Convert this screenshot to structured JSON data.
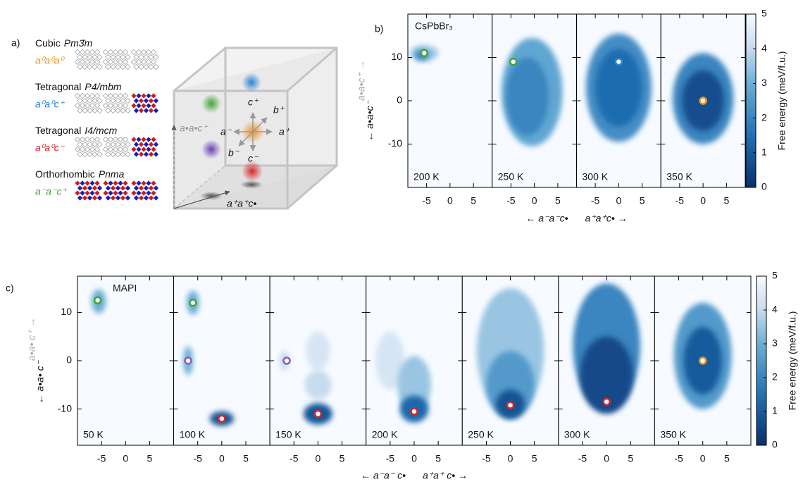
{
  "panel_a": {
    "label": "a)",
    "phases": [
      {
        "system": "Cubic",
        "group": "Pm3̄m",
        "tilt": "a⁰a⁰a⁰",
        "color": "#f39019"
      },
      {
        "system": "Tetragonal",
        "group": "P4/mbm",
        "tilt": "a⁰a⁰c⁺",
        "color": "#2a83d8"
      },
      {
        "system": "Tetragonal",
        "group": "I4/mcm",
        "tilt": "a⁰a⁰c⁻",
        "color": "#d7262b"
      },
      {
        "system": "Orthorhombic",
        "group": "Pnma",
        "tilt": "a⁻a⁻c⁺",
        "color": "#45a33a"
      }
    ],
    "cube_labels": {
      "c_plus": "c⁺",
      "b_plus": "b⁺",
      "a_plus": "a⁺",
      "a_minus": "a⁻",
      "b_minus": "b⁻",
      "c_minus": "c⁻",
      "side": "a•a•c⁺",
      "bottom": "a⁺a⁺c•"
    }
  },
  "chart_data": [
    {
      "type": "heatmap",
      "label": "b)",
      "title": "CsPbBr₃",
      "xlim": [
        -9,
        9
      ],
      "xticks": [
        -5,
        0,
        5
      ],
      "ylim": [
        -20,
        20
      ],
      "yticks": [
        -10,
        0,
        10
      ],
      "x_label_neg": "← a⁻a⁻c•",
      "x_label_pos": "a⁺a⁺c• →",
      "y_label_neg": "← a•a•c⁻",
      "y_label_pos": "a•a•c⁺ →",
      "colorbar": {
        "label": "Free energy (meV/f.u.)",
        "lim": [
          0,
          5
        ],
        "ticks": [
          0,
          1,
          2,
          3,
          4,
          5
        ]
      },
      "panels": [
        {
          "temperature": "200 K",
          "regions": [
            {
              "x": -5.5,
              "y": 11,
              "rx": 3,
              "ry": 1.8,
              "level": 3.5
            },
            {
              "x": -6,
              "y": 10.5,
              "rx": 1.5,
              "ry": 1.2,
              "level": 2
            }
          ],
          "minima": [
            {
              "x": -5.5,
              "y": 11,
              "color": "#45a33a"
            }
          ]
        },
        {
          "temperature": "250 K",
          "regions": [
            {
              "x": -0.5,
              "y": 2,
              "rx": 6.5,
              "ry": 12.5,
              "level": 2.8
            },
            {
              "x": -1.5,
              "y": 1,
              "rx": 4.5,
              "ry": 9,
              "level": 2
            }
          ],
          "minima": [
            {
              "x": -4.5,
              "y": 9,
              "color": "#45a33a"
            }
          ]
        },
        {
          "temperature": "300 K",
          "regions": [
            {
              "x": 0,
              "y": 3,
              "rx": 7,
              "ry": 12.5,
              "level": 2.2
            },
            {
              "x": 0,
              "y": 3,
              "rx": 5,
              "ry": 9,
              "level": 1.4
            }
          ],
          "minima": [
            {
              "x": 0,
              "y": 9,
              "color": "#2a83d8"
            }
          ]
        },
        {
          "temperature": "350 K",
          "regions": [
            {
              "x": 0,
              "y": 0.5,
              "rx": 6.5,
              "ry": 10.5,
              "level": 2
            },
            {
              "x": 0,
              "y": 0,
              "rx": 4.5,
              "ry": 7,
              "level": 0.7
            }
          ],
          "minima": [
            {
              "x": 0,
              "y": 0,
              "color": "#f39019"
            }
          ]
        }
      ]
    },
    {
      "type": "heatmap",
      "label": "c)",
      "title": "MAPI",
      "xlim": [
        -10,
        10
      ],
      "xticks": [
        -5,
        0,
        5
      ],
      "ylim": [
        -17.5,
        17.5
      ],
      "yticks": [
        -10,
        0,
        10
      ],
      "x_label_neg": "← a⁻a⁻ c•",
      "x_label_pos": "a⁺a⁺ c• →",
      "y_label_neg": "← a•a• c⁻",
      "y_label_pos": "a•a• c⁺ →",
      "colorbar": {
        "label": "Free energy (meV/f.u.)",
        "lim": [
          0,
          5
        ],
        "ticks": [
          0,
          1,
          2,
          3,
          4,
          5
        ]
      },
      "panels": [
        {
          "temperature": "50 K",
          "regions": [
            {
              "x": -5.6,
              "y": 12.3,
              "rx": 1.5,
              "ry": 2.5,
              "level": 3
            }
          ],
          "minima": [
            {
              "x": -5.8,
              "y": 12.5,
              "color": "#45a33a"
            }
          ]
        },
        {
          "temperature": "100 K",
          "regions": [
            {
              "x": -6,
              "y": 12,
              "rx": 1.3,
              "ry": 2.5,
              "level": 3
            },
            {
              "x": -7,
              "y": 0,
              "rx": 1,
              "ry": 3,
              "level": 3
            },
            {
              "x": 0,
              "y": -12,
              "rx": 2.5,
              "ry": 1.5,
              "level": 0.8
            }
          ],
          "minima": [
            {
              "x": -6,
              "y": 12,
              "color": "#45a33a"
            },
            {
              "x": -7,
              "y": 0,
              "color": "#8a5cc4"
            },
            {
              "x": 0,
              "y": -12,
              "color": "#d7262b"
            }
          ]
        },
        {
          "temperature": "150 K",
          "regions": [
            {
              "x": 0,
              "y": 2,
              "rx": 2.5,
              "ry": 4,
              "level": 4.3
            },
            {
              "x": 0,
              "y": -5,
              "rx": 2.8,
              "ry": 3,
              "level": 4
            },
            {
              "x": -7,
              "y": 0,
              "rx": 1,
              "ry": 2,
              "level": 4
            },
            {
              "x": 0,
              "y": -11,
              "rx": 3,
              "ry": 2.2,
              "level": 0.9
            }
          ],
          "minima": [
            {
              "x": -6.5,
              "y": 0,
              "color": "#8a5cc4"
            },
            {
              "x": 0,
              "y": -11,
              "color": "#d7262b"
            }
          ]
        },
        {
          "temperature": "200 K",
          "regions": [
            {
              "x": -5,
              "y": 0,
              "rx": 3,
              "ry": 6,
              "level": 4.3
            },
            {
              "x": 0,
              "y": -5,
              "rx": 3.5,
              "ry": 6,
              "level": 3.5
            },
            {
              "x": 0,
              "y": -10,
              "rx": 3,
              "ry": 2.8,
              "level": 1.3
            }
          ],
          "minima": [
            {
              "x": 0,
              "y": -10.5,
              "color": "#d7262b"
            }
          ]
        },
        {
          "temperature": "250 K",
          "regions": [
            {
              "x": 0,
              "y": 2,
              "rx": 7,
              "ry": 13,
              "level": 3.5
            },
            {
              "x": 0,
              "y": -5,
              "rx": 5,
              "ry": 7,
              "level": 2.5
            },
            {
              "x": 0,
              "y": -9,
              "rx": 3,
              "ry": 3,
              "level": 0.8
            }
          ],
          "minima": [
            {
              "x": 0,
              "y": -9.2,
              "color": "#d7262b"
            }
          ]
        },
        {
          "temperature": "300 K",
          "regions": [
            {
              "x": 0,
              "y": 3,
              "rx": 7,
              "ry": 13,
              "level": 2
            },
            {
              "x": 0,
              "y": -3,
              "rx": 5.5,
              "ry": 8,
              "level": 0.6
            }
          ],
          "minima": [
            {
              "x": 0,
              "y": -8.5,
              "color": "#d7262b"
            }
          ]
        },
        {
          "temperature": "350 K",
          "regions": [
            {
              "x": 0,
              "y": 1,
              "rx": 6,
              "ry": 11,
              "level": 2.5
            },
            {
              "x": 0,
              "y": 0,
              "rx": 4,
              "ry": 7,
              "level": 1
            }
          ],
          "minima": [
            {
              "x": 0,
              "y": 0,
              "color": "#f39019"
            }
          ]
        }
      ]
    }
  ]
}
